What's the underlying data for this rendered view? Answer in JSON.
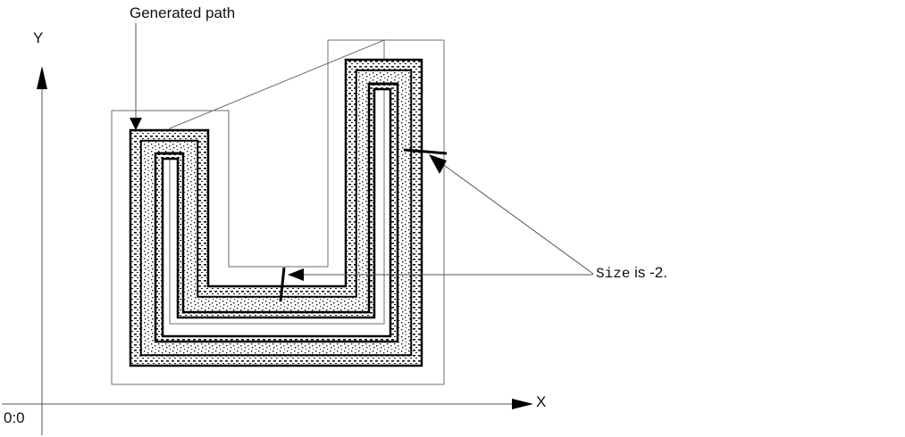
{
  "labels": {
    "generated_path": "Generated path",
    "axis_y": "Y",
    "axis_x": "X",
    "origin": "0:0",
    "size_keyword": "Size",
    "size_rest": " is -2."
  },
  "colors": {
    "ink": "#000000",
    "thin_line": "#6e6e6e",
    "fill_pattern": "#111111",
    "background": "#ffffff"
  }
}
